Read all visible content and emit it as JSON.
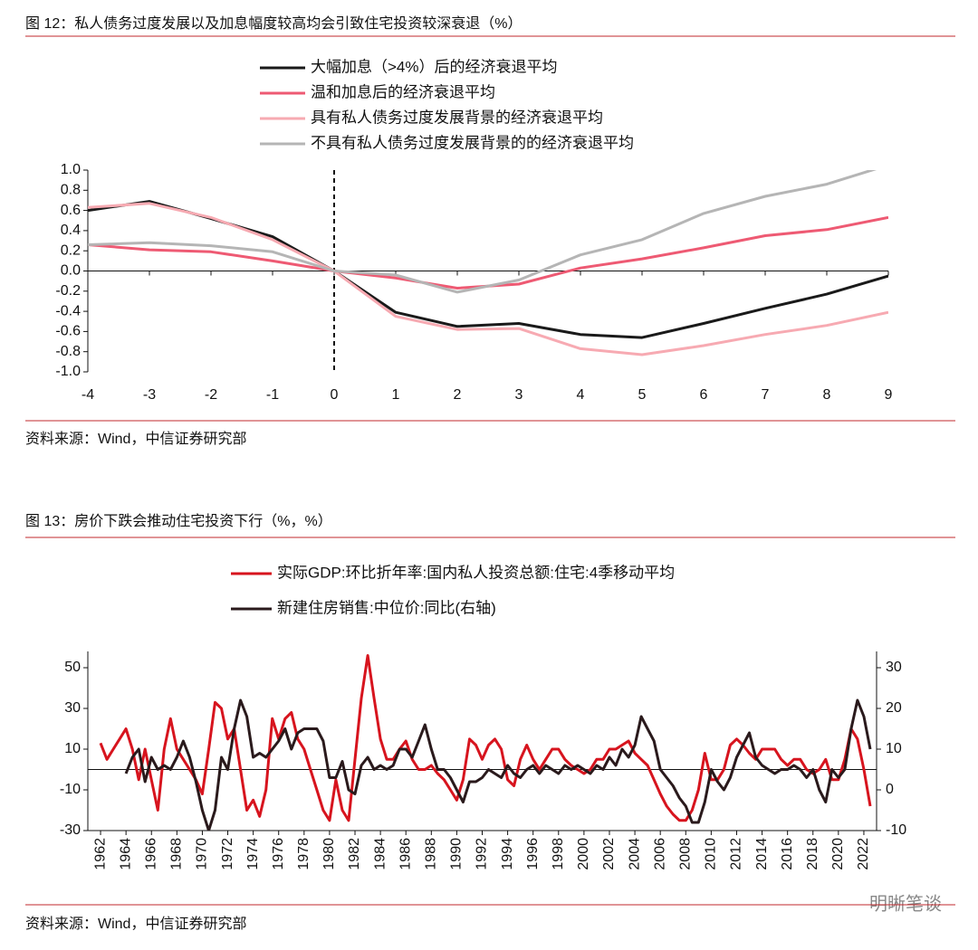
{
  "watermark": "明晰笔谈",
  "chart_data": [
    {
      "type": "line",
      "title": "图 12：私人债务过度发展以及加息幅度较高均会引致住宅投资较深衰退（%）",
      "source": "资料来源：Wind，中信证券研究部",
      "x": [
        -4,
        -3,
        -2,
        -1,
        0,
        1,
        2,
        3,
        4,
        5,
        6,
        7,
        8,
        9
      ],
      "xlim": [
        -4,
        9
      ],
      "xticks": [
        -4,
        -3,
        -2,
        -1,
        0,
        1,
        2,
        3,
        4,
        5,
        6,
        7,
        8,
        9
      ],
      "ylim": [
        -1,
        1
      ],
      "yticks": [
        {
          "value": -1,
          "label": "-1.0"
        },
        -0.8,
        -0.6,
        -0.4,
        -0.2,
        {
          "value": 0,
          "label": "0.0"
        },
        0.2,
        0.4,
        0.6,
        0.8,
        {
          "value": 1,
          "label": "1.0"
        }
      ],
      "vline": 0,
      "series": [
        {
          "name": "大幅加息（>4%）后的经济衰退平均",
          "color": "#1a1a1a",
          "values": [
            0.6,
            0.69,
            0.52,
            0.34,
            0,
            -0.41,
            -0.55,
            -0.52,
            -0.63,
            -0.66,
            -0.52,
            -0.37,
            -0.23,
            -0.05
          ]
        },
        {
          "name": "温和加息后的经济衰退平均",
          "color": "#ee5a73",
          "values": [
            0.26,
            0.21,
            0.19,
            0.1,
            0,
            -0.07,
            -0.17,
            -0.13,
            0.03,
            0.12,
            0.23,
            0.35,
            0.41,
            0.53
          ]
        },
        {
          "name": "具有私人债务过度发展背景的经济衰退平均",
          "color": "#f7aab2",
          "values": [
            0.63,
            0.67,
            0.53,
            0.31,
            0,
            -0.45,
            -0.58,
            -0.57,
            -0.77,
            -0.83,
            -0.74,
            -0.63,
            -0.54,
            -0.41
          ]
        },
        {
          "name": "不具有私人债务过度发展背景的的经济衰退平均",
          "color": "#b5b5b5",
          "values": [
            0.26,
            0.28,
            0.25,
            0.19,
            0,
            -0.04,
            -0.21,
            -0.09,
            0.16,
            0.31,
            0.57,
            0.74,
            0.86,
            1.05
          ]
        }
      ]
    },
    {
      "type": "line",
      "title": "图 13：房价下跌会推动住宅投资下行（%，%）",
      "source": "资料来源：Wind，中信证券研究部",
      "x": [
        1962,
        1962.5,
        1963,
        1963.5,
        1964,
        1964.5,
        1965,
        1965.5,
        1966,
        1966.5,
        1967,
        1967.5,
        1968,
        1968.5,
        1969,
        1969.5,
        1970,
        1970.5,
        1971,
        1971.5,
        1972,
        1972.5,
        1973,
        1973.5,
        1974,
        1974.5,
        1975,
        1975.5,
        1976,
        1976.5,
        1977,
        1977.5,
        1978,
        1978.5,
        1979,
        1979.5,
        1980,
        1980.5,
        1981,
        1981.5,
        1982,
        1982.5,
        1983,
        1983.5,
        1984,
        1984.5,
        1985,
        1985.5,
        1986,
        1986.5,
        1987,
        1987.5,
        1988,
        1988.5,
        1989,
        1989.5,
        1990,
        1990.5,
        1991,
        1991.5,
        1992,
        1992.5,
        1993,
        1993.5,
        1994,
        1994.5,
        1995,
        1995.5,
        1996,
        1996.5,
        1997,
        1997.5,
        1998,
        1998.5,
        1999,
        1999.5,
        2000,
        2000.5,
        2001,
        2001.5,
        2002,
        2002.5,
        2003,
        2003.5,
        2004,
        2004.5,
        2005,
        2005.5,
        2006,
        2006.5,
        2007,
        2007.5,
        2008,
        2008.5,
        2009,
        2009.5,
        2010,
        2010.5,
        2011,
        2011.5,
        2012,
        2012.5,
        2013,
        2013.5,
        2014,
        2014.5,
        2015,
        2015.5,
        2016,
        2016.5,
        2017,
        2017.5,
        2018,
        2018.5,
        2019,
        2019.5,
        2020,
        2020.5,
        2021,
        2021.5,
        2022,
        2022.5
      ],
      "xlim": [
        1961,
        2023
      ],
      "xticks": [
        1962,
        1964,
        1966,
        1968,
        1970,
        1972,
        1974,
        1976,
        1978,
        1980,
        1982,
        1984,
        1986,
        1988,
        1990,
        1992,
        1994,
        1996,
        1998,
        2000,
        2002,
        2004,
        2006,
        2008,
        2010,
        2012,
        2014,
        2016,
        2018,
        2020,
        2022
      ],
      "ylim": [
        -30,
        58
      ],
      "yticks": [
        -30,
        -10,
        10,
        30,
        50
      ],
      "y2lim": [
        -10,
        34
      ],
      "y2ticks": [
        -10,
        0,
        10,
        20,
        30
      ],
      "series": [
        {
          "name": "实际GDP:环比折年率:国内私人投资总额:住宅:4季移动平均",
          "color": "#d7141e",
          "values": [
            13,
            5,
            10,
            15,
            20,
            10,
            -5,
            10,
            -5,
            -20,
            10,
            25,
            10,
            5,
            0,
            -5,
            -12,
            10,
            33,
            30,
            15,
            20,
            0,
            -20,
            -15,
            -23,
            -10,
            25,
            15,
            25,
            28,
            15,
            10,
            0,
            -10,
            -20,
            -25,
            -5,
            -20,
            -25,
            5,
            35,
            56,
            35,
            15,
            5,
            5,
            10,
            14,
            5,
            0,
            0,
            2,
            -2,
            -5,
            -10,
            -15,
            -5,
            15,
            12,
            5,
            12,
            15,
            10,
            -5,
            -8,
            5,
            12,
            5,
            0,
            5,
            10,
            10,
            5,
            2,
            0,
            -2,
            0,
            5,
            5,
            10,
            10,
            12,
            14,
            8,
            5,
            2,
            -5,
            -12,
            -18,
            -22,
            -25,
            -25,
            -20,
            -10,
            8,
            -5,
            -5,
            0,
            12,
            15,
            12,
            8,
            5,
            10,
            10,
            10,
            5,
            2,
            5,
            5,
            0,
            -2,
            0,
            5,
            -5,
            -5,
            5,
            20,
            15,
            0,
            -18
          ]
        },
        {
          "name": "新建住房销售:中位价:同比(右轴)",
          "color": "#2a1a1c",
          "axis": "y2",
          "values": [
            null,
            null,
            null,
            null,
            4,
            8,
            10,
            2,
            8,
            5,
            6,
            5,
            8,
            12,
            8,
            2,
            -5,
            -10,
            -5,
            8,
            5,
            15,
            22,
            18,
            8,
            9,
            8,
            10,
            12,
            15,
            10,
            14,
            15,
            15,
            15,
            12,
            3,
            3,
            7,
            0,
            -1,
            6,
            8,
            5,
            6,
            5,
            6,
            10,
            10,
            8,
            12,
            16,
            10,
            5,
            5,
            3,
            0,
            -3,
            2,
            2,
            3,
            5,
            4,
            3,
            6,
            4,
            3,
            5,
            6,
            4,
            6,
            5,
            4,
            6,
            5,
            6,
            5,
            4,
            6,
            5,
            8,
            6,
            10,
            8,
            11,
            18,
            15,
            12,
            5,
            3,
            1,
            -2,
            -4,
            -8,
            -8,
            -3,
            5,
            2,
            0,
            3,
            8,
            11,
            14,
            8,
            6,
            5,
            4,
            5,
            5,
            6,
            5,
            3,
            5,
            0,
            -3,
            5,
            3,
            5,
            15,
            22,
            18,
            10
          ]
        }
      ]
    }
  ]
}
